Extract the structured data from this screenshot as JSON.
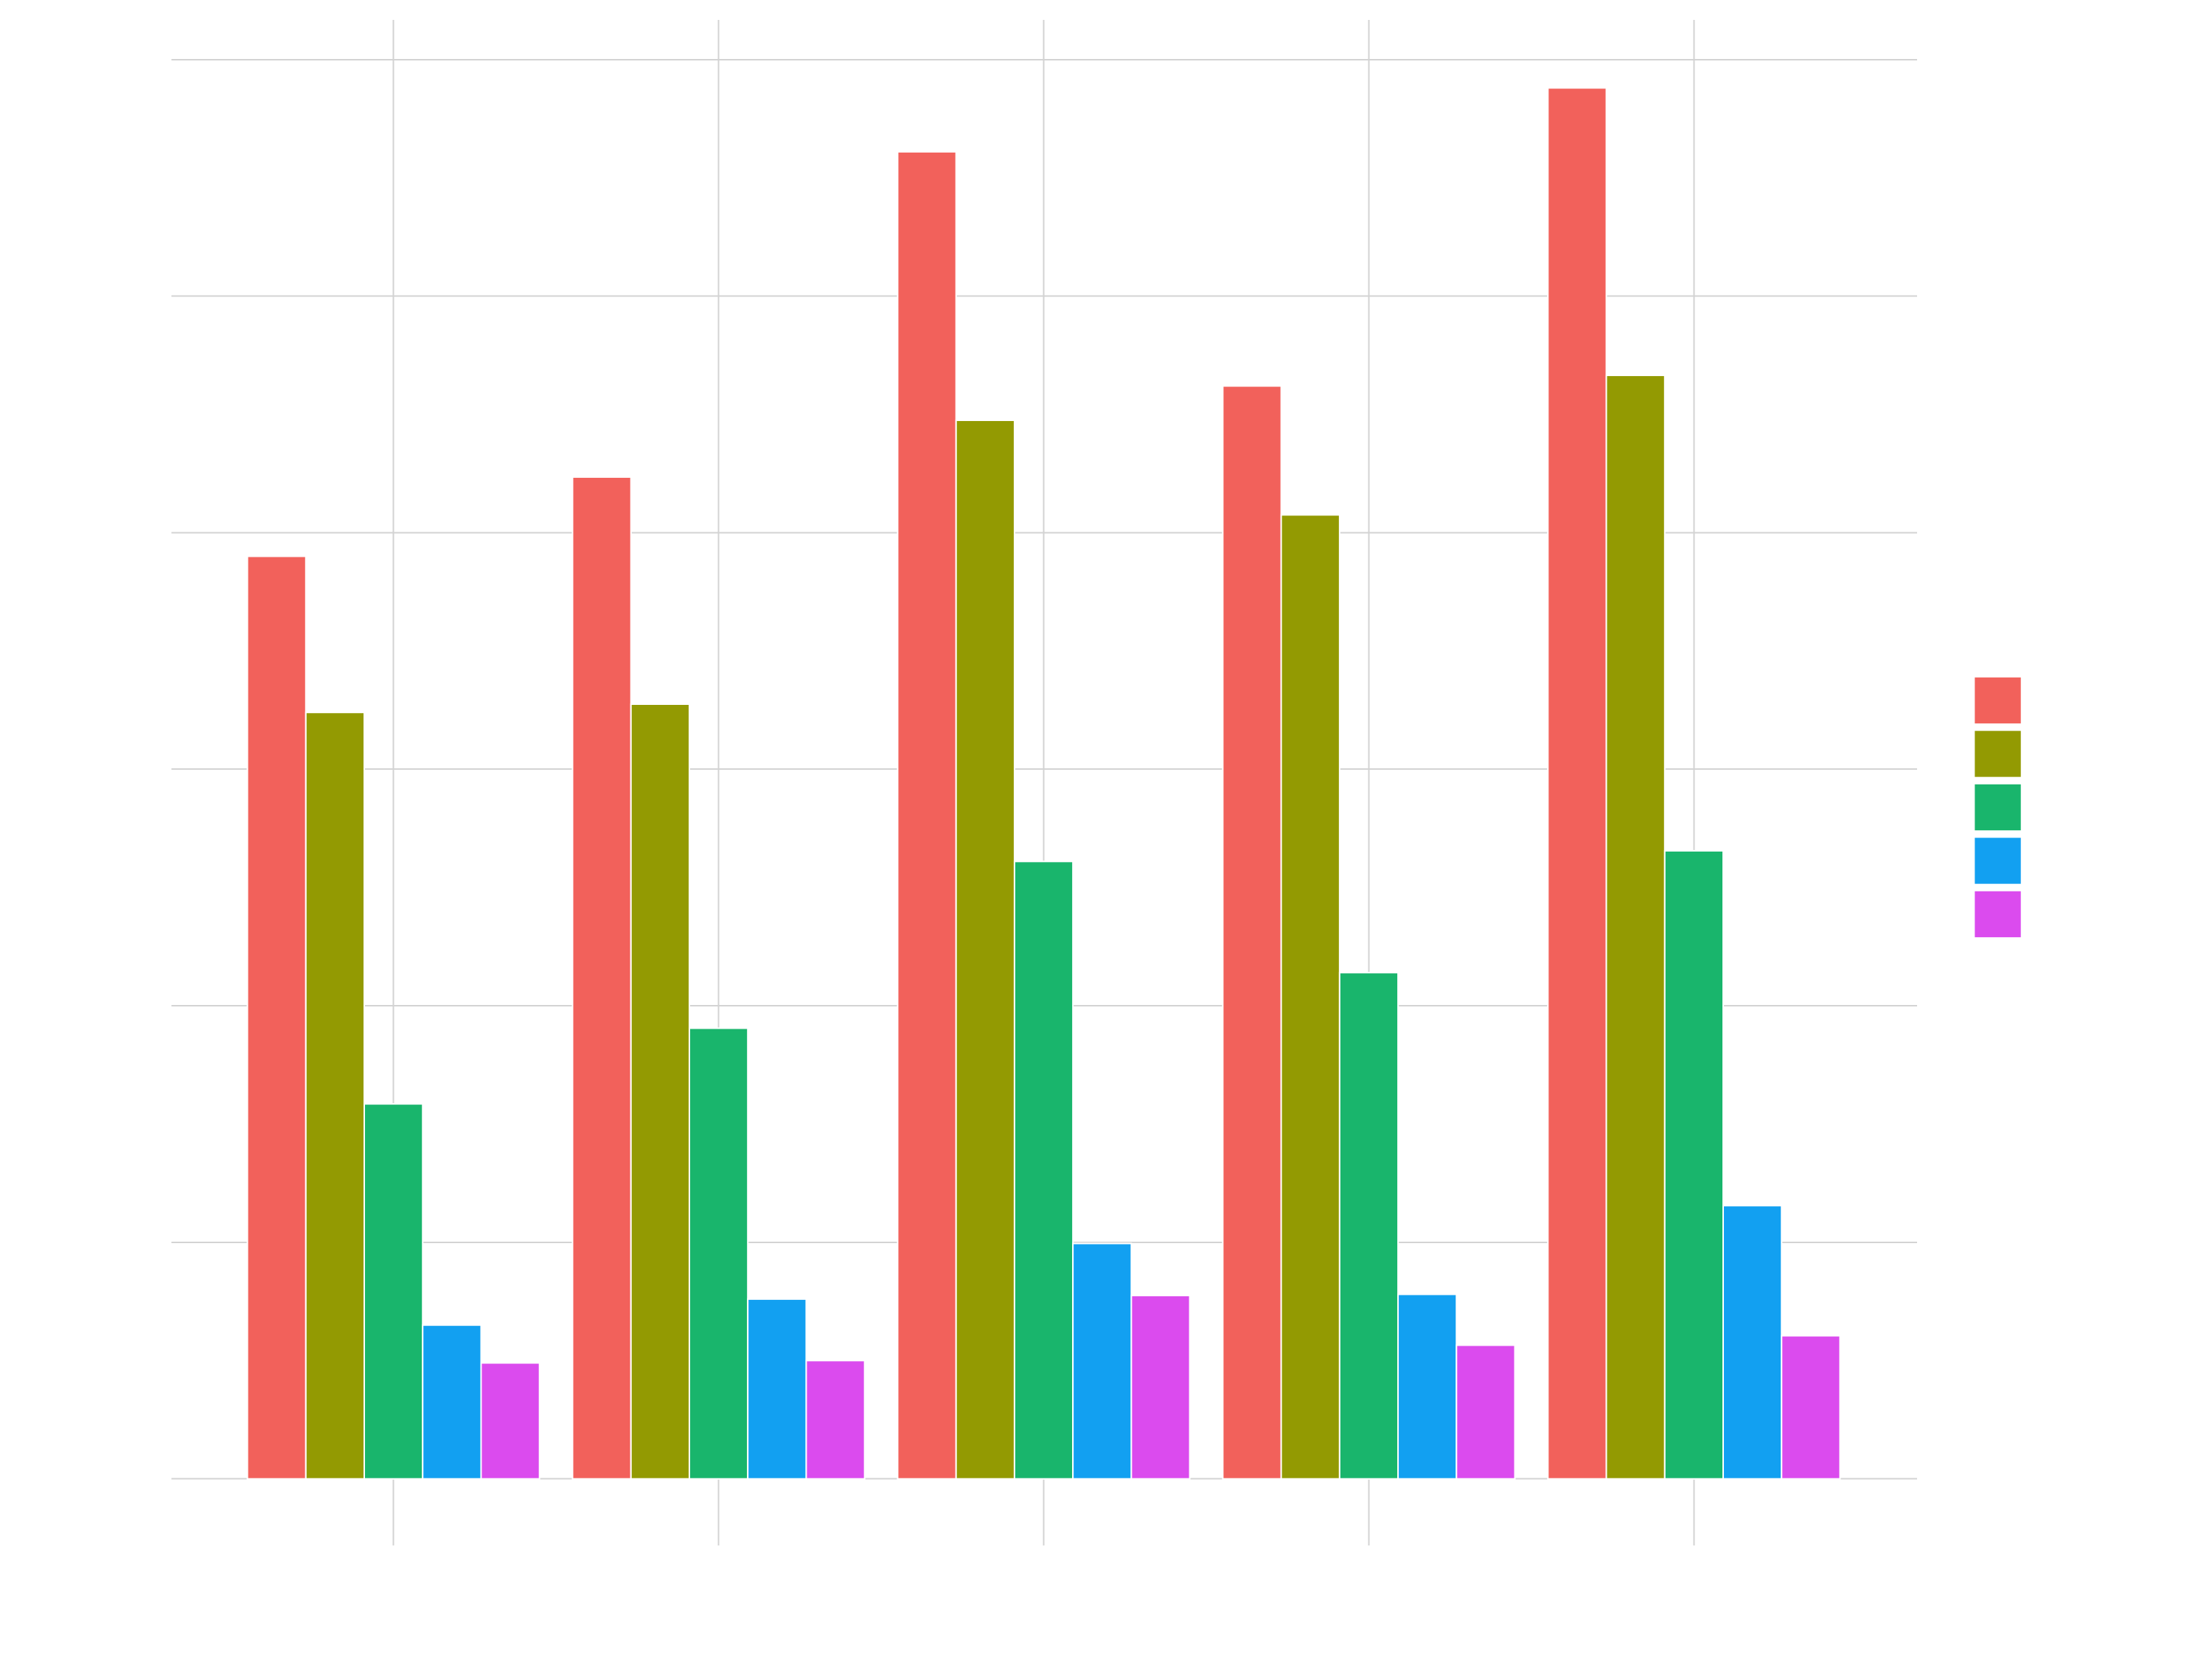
{
  "chart_data": {
    "type": "bar",
    "title": "",
    "xlabel": "",
    "ylabel": "",
    "categories": [
      "",
      "",
      "",
      "",
      ""
    ],
    "series": [
      {
        "values": [
          39.0,
          42.35,
          56.1,
          46.2,
          58.8
        ],
        "color": "#F2615B"
      },
      {
        "values": [
          32.4,
          32.75,
          44.75,
          40.75,
          46.65
        ],
        "color": "#939A02"
      },
      {
        "values": [
          15.85,
          19.05,
          26.1,
          21.4,
          26.55
        ],
        "color": "#19B56C"
      },
      {
        "values": [
          6.5,
          7.6,
          9.95,
          7.8,
          11.55
        ],
        "color": "#12A0F1"
      },
      {
        "values": [
          4.9,
          5.0,
          7.75,
          5.65,
          6.05
        ],
        "color": "#DB4BEE"
      }
    ],
    "ylim": [
      -1.5,
      61.0
    ],
    "yticks": [
      0,
      10,
      20,
      30,
      40,
      50,
      60
    ],
    "grid": true,
    "legend_position": "right"
  }
}
